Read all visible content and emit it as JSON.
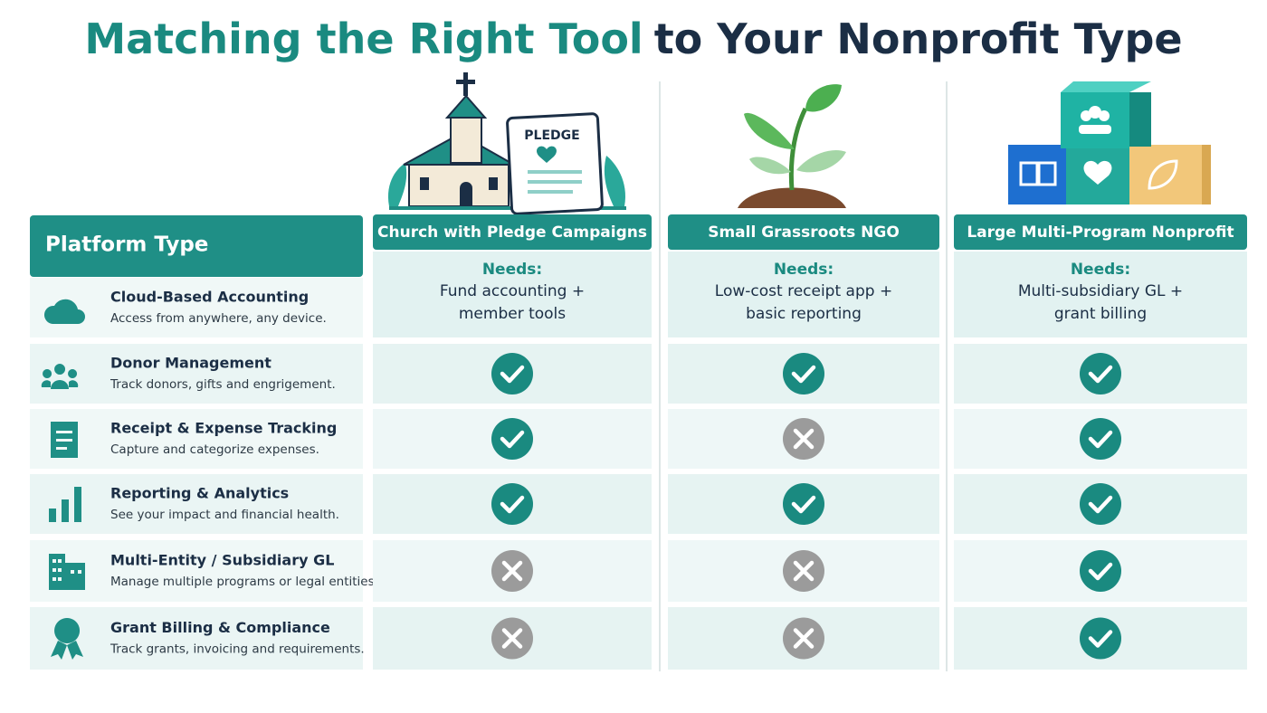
{
  "header": {
    "title_highlight": "Matching the Right Tool",
    "title_rest": "to Your Nonprofit Type",
    "pledge_card": "PLEDGE"
  },
  "table": {
    "corner": "Platform Type",
    "columns": [
      {
        "name": "Church with Pledge Campaigns",
        "needs_label": "Needs:",
        "needs": [
          "Fund accounting +",
          "member tools"
        ]
      },
      {
        "name": "Small Grassroots NGO",
        "needs_label": "Needs:",
        "needs": [
          "Low-cost receipt app +",
          "basic reporting"
        ]
      },
      {
        "name": "Large Multi-Program Nonprofit",
        "needs_label": "Needs:",
        "needs": [
          "Multi-subsidiary GL +",
          "grant billing"
        ]
      }
    ],
    "rows": [
      {
        "feature": "Cloud-Based Accounting",
        "description": "Access from anywhere, any device."
      },
      {
        "feature": "Donor Management",
        "description": "Track donors, gifts and engrigement.",
        "support": [
          true,
          true,
          true
        ]
      },
      {
        "feature": "Receipt & Expense Tracking",
        "description": "Capture and categorize expenses.",
        "support": [
          true,
          false,
          true
        ]
      },
      {
        "feature": "Reporting & Analytics",
        "description": "See your impact and financial health.",
        "support": [
          true,
          true,
          true
        ]
      },
      {
        "feature": "Multi-Entity / Subsidiary GL",
        "description": "Manage multiple programs or legal entities.",
        "support": [
          false,
          false,
          true
        ]
      },
      {
        "feature": "Grant Billing & Compliance",
        "description": "Track grants, invoicing and requirements.",
        "support": [
          false,
          false,
          true
        ]
      }
    ]
  }
}
